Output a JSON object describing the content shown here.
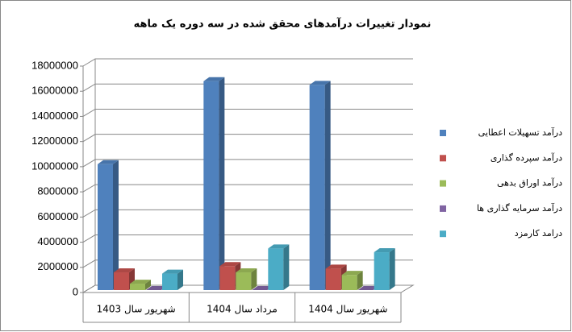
{
  "chart_data": {
    "type": "bar3d",
    "title": "نمودار تغییرات درآمدهای محقق شده در سه دوره یک ماهه",
    "categories": [
      "شهریور سال 1403",
      "مرداد سال 1404",
      "شهریور سال 1404"
    ],
    "series": [
      {
        "name": "درآمد تسهیلات اعطایی",
        "color": "#4f81bd",
        "values": [
          10200000,
          16800000,
          16500000
        ]
      },
      {
        "name": "درآمد سپرده گذاری",
        "color": "#c0504d",
        "values": [
          1600000,
          2100000,
          1900000
        ]
      },
      {
        "name": "درآمد اوراق بدهی",
        "color": "#9bbb59",
        "values": [
          700000,
          1600000,
          1400000
        ]
      },
      {
        "name": "درآمد سرمایه گذاری ها",
        "color": "#8064a2",
        "values": [
          100000,
          100000,
          100000
        ]
      },
      {
        "name": "درامد کارمزد",
        "color": "#4bacc6",
        "values": [
          1500000,
          3500000,
          3200000
        ]
      }
    ],
    "ylim": [
      0,
      18000000
    ],
    "yticks": [
      0,
      2000000,
      4000000,
      6000000,
      8000000,
      10000000,
      12000000,
      14000000,
      16000000,
      18000000
    ],
    "grid": true,
    "legend": "right"
  }
}
